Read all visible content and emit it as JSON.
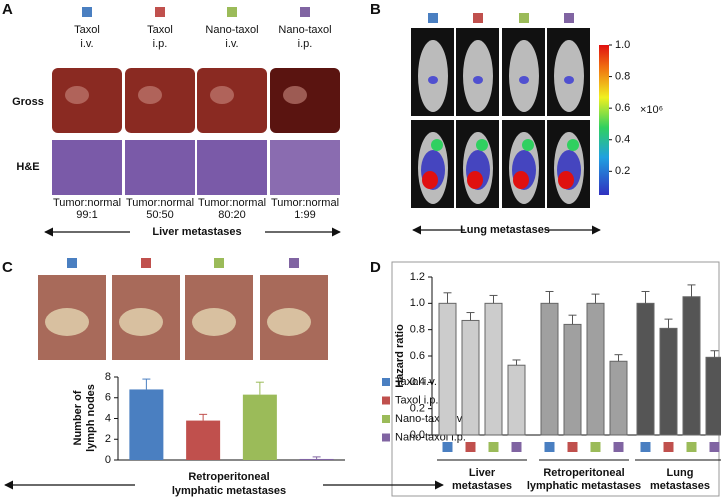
{
  "treatment_colors": [
    "#4a7fc1",
    "#c0504d",
    "#9bbb59",
    "#8064a2"
  ],
  "panels": {
    "a": {
      "label": "A",
      "rows": [
        "Gross",
        "H&E"
      ],
      "footer": "Liver metastases",
      "columns": [
        {
          "name": "Taxol",
          "route": "i.v.",
          "ratio_label": "Tumor:normal",
          "ratio": "99:1"
        },
        {
          "name": "Taxol",
          "route": "i.p.",
          "ratio_label": "Tumor:normal",
          "ratio": "50:50"
        },
        {
          "name": "Nano-taxol",
          "route": "i.v.",
          "ratio_label": "Tumor:normal",
          "ratio": "80:20"
        },
        {
          "name": "Nano-taxol",
          "route": "i.p.",
          "ratio_label": "Tumor:normal",
          "ratio": "1:99"
        }
      ]
    },
    "b": {
      "label": "B",
      "footer": "Lung metastases",
      "colorbar": {
        "lim": [
          0.05,
          1.0
        ],
        "ticks": [
          {
            "value": 1.0,
            "label": "1.0"
          },
          0.8,
          0.6,
          0.4,
          0.2
        ],
        "unit": "×10⁶"
      }
    },
    "c": {
      "label": "C"
    },
    "d": {
      "label": "D"
    }
  },
  "chart_data": [
    {
      "type": "bar",
      "ylabel": [
        "Number of",
        "lymph nodes"
      ],
      "xlabel": [
        "Retroperitoneal",
        "lymphatic metastases"
      ],
      "ylim": [
        0,
        8
      ],
      "yticks": [
        0,
        2,
        4,
        6,
        8
      ],
      "series": [
        {
          "name": "Taxol i.v.",
          "color": "#4a7fc1",
          "values": [
            6.8
          ],
          "errors": [
            1.0
          ]
        },
        {
          "name": "Taxol i.p.",
          "color": "#c0504d",
          "values": [
            3.8
          ],
          "errors": [
            0.6
          ]
        },
        {
          "name": "Nano-taxol i.v.",
          "color": "#9bbb59",
          "values": [
            6.3
          ],
          "errors": [
            1.2
          ]
        },
        {
          "name": "Nano-taxol i.p.",
          "color": "#8064a2",
          "values": [
            0.1
          ],
          "errors": [
            0.2
          ]
        }
      ]
    },
    {
      "type": "grouped-bar",
      "ylabel": "Hazard ratio",
      "categories": [
        [
          "Liver",
          "metastases"
        ],
        [
          "Retroperitoneal",
          "lymphatic metastases"
        ],
        [
          "Lung",
          "metastases"
        ]
      ],
      "ylim": [
        0,
        1.2
      ],
      "yticks": [
        {
          "value": 0,
          "label": "0.0"
        },
        0.2,
        0.4,
        0.6,
        0.8,
        {
          "value": 1.0,
          "label": "1.0"
        },
        1.2
      ],
      "bar_fills": [
        "#cccccc",
        "#a0a0a0",
        "#555555"
      ],
      "series": [
        {
          "color": "#4a7fc1",
          "values": [
            1.0,
            1.0,
            1.0
          ],
          "errors": [
            0.08,
            0.09,
            0.09
          ]
        },
        {
          "color": "#c0504d",
          "values": [
            0.87,
            0.84,
            0.81
          ],
          "errors": [
            0.06,
            0.07,
            0.07
          ]
        },
        {
          "color": "#9bbb59",
          "values": [
            1.0,
            1.0,
            1.05
          ],
          "errors": [
            0.06,
            0.07,
            0.09
          ]
        },
        {
          "color": "#8064a2",
          "values": [
            0.53,
            0.56,
            0.59
          ],
          "errors": [
            0.04,
            0.05,
            0.05
          ]
        }
      ]
    }
  ]
}
